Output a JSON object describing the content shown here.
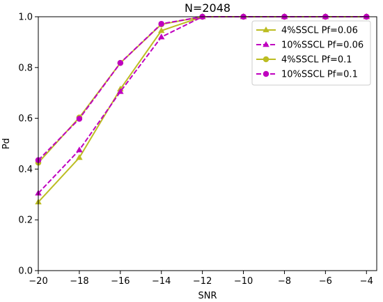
{
  "chart_data": {
    "type": "line",
    "title": "N=2048",
    "xlabel": "SNR",
    "ylabel": "Pd",
    "xlim": [
      -20,
      -3.5
    ],
    "ylim": [
      0,
      1
    ],
    "xticks": [
      -20,
      -18,
      -16,
      -14,
      -12,
      -10,
      -8,
      -6,
      -4
    ],
    "yticks": [
      0.0,
      0.2,
      0.4,
      0.6,
      0.8,
      1.0
    ],
    "xtick_labels": [
      "−20",
      "−18",
      "−16",
      "−14",
      "−12",
      "−10",
      "−8",
      "−6",
      "−4"
    ],
    "ytick_labels": [
      "0.0",
      "0.2",
      "0.4",
      "0.6",
      "0.8",
      "1.0"
    ],
    "grid": false,
    "legend_position": "top-right",
    "x": [
      -20,
      -18,
      -16,
      -14,
      -12,
      -10,
      -8,
      -6,
      -4
    ],
    "series": [
      {
        "name": "4%SSCL Pf=0.06",
        "color": "#bcbd22",
        "dash": "solid",
        "marker": "triangle",
        "values": [
          0.27,
          0.445,
          0.715,
          0.945,
          1.0,
          1.0,
          1.0,
          1.0,
          1.0
        ]
      },
      {
        "name": "10%SSCL Pf=0.06",
        "color": "#bf00bf",
        "dash": "dashed",
        "marker": "triangle",
        "values": [
          0.305,
          0.475,
          0.705,
          0.92,
          1.0,
          1.0,
          1.0,
          1.0,
          1.0
        ]
      },
      {
        "name": "4%SSCL Pf=0.1",
        "color": "#bcbd22",
        "dash": "solid",
        "marker": "circle",
        "values": [
          0.425,
          0.603,
          0.818,
          0.97,
          1.0,
          1.0,
          1.0,
          1.0,
          1.0
        ]
      },
      {
        "name": "10%SSCL Pf=0.1",
        "color": "#bf00bf",
        "dash": "dashed",
        "marker": "circle",
        "values": [
          0.435,
          0.598,
          0.818,
          0.972,
          1.0,
          1.0,
          1.0,
          1.0,
          1.0
        ]
      }
    ]
  }
}
